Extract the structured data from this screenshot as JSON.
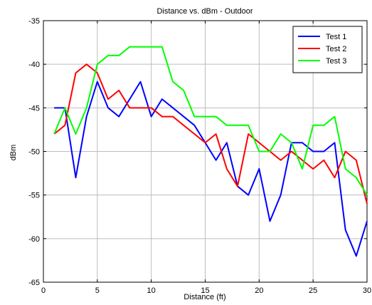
{
  "chart_data": {
    "type": "line",
    "title": "Distance vs. dBm - Outdoor",
    "xlabel": "Distance (ft)",
    "ylabel": "dBm",
    "xlim": [
      0,
      30
    ],
    "ylim": [
      -65,
      -35
    ],
    "xticks": [
      0,
      5,
      10,
      15,
      20,
      25,
      30
    ],
    "yticks": [
      -65,
      -60,
      -55,
      -50,
      -45,
      -40,
      -35
    ],
    "grid": true,
    "legend_position": "top-right",
    "x": [
      1,
      2,
      3,
      4,
      5,
      6,
      7,
      8,
      9,
      10,
      11,
      12,
      13,
      14,
      15,
      16,
      17,
      18,
      19,
      20,
      21,
      22,
      23,
      24,
      25,
      26,
      27,
      28,
      29,
      30
    ],
    "series": [
      {
        "name": "Test 1",
        "color": "#0000ff",
        "values": [
          -45,
          -45,
          -53,
          -46,
          -42,
          -45,
          -46,
          -44,
          -42,
          -46,
          -44,
          -45,
          -46,
          -47,
          -49,
          -51,
          -49,
          -54,
          -55,
          -52,
          -58,
          -55,
          -49,
          -49,
          -50,
          -50,
          -49,
          -59,
          -62,
          -58
        ]
      },
      {
        "name": "Test 2",
        "color": "#ff0000",
        "values": [
          -48,
          -47,
          -41,
          -40,
          -41,
          -44,
          -43,
          -45,
          -45,
          -45,
          -46,
          -46,
          -47,
          -48,
          -49,
          -48,
          -52,
          -54,
          -48,
          -49,
          -50,
          -51,
          -50,
          -51,
          -52,
          -51,
          -53,
          -50,
          -51,
          -56
        ]
      },
      {
        "name": "Test 3",
        "color": "#00ff00",
        "values": [
          -48,
          -45,
          -48,
          -45,
          -40,
          -39,
          -39,
          -38,
          -38,
          -38,
          -38,
          -42,
          -43,
          -46,
          -46,
          -46,
          -47,
          -47,
          -47,
          -50,
          -50,
          -48,
          -49,
          -52,
          -47,
          -47,
          -46,
          -52,
          -53,
          -55
        ]
      }
    ]
  }
}
